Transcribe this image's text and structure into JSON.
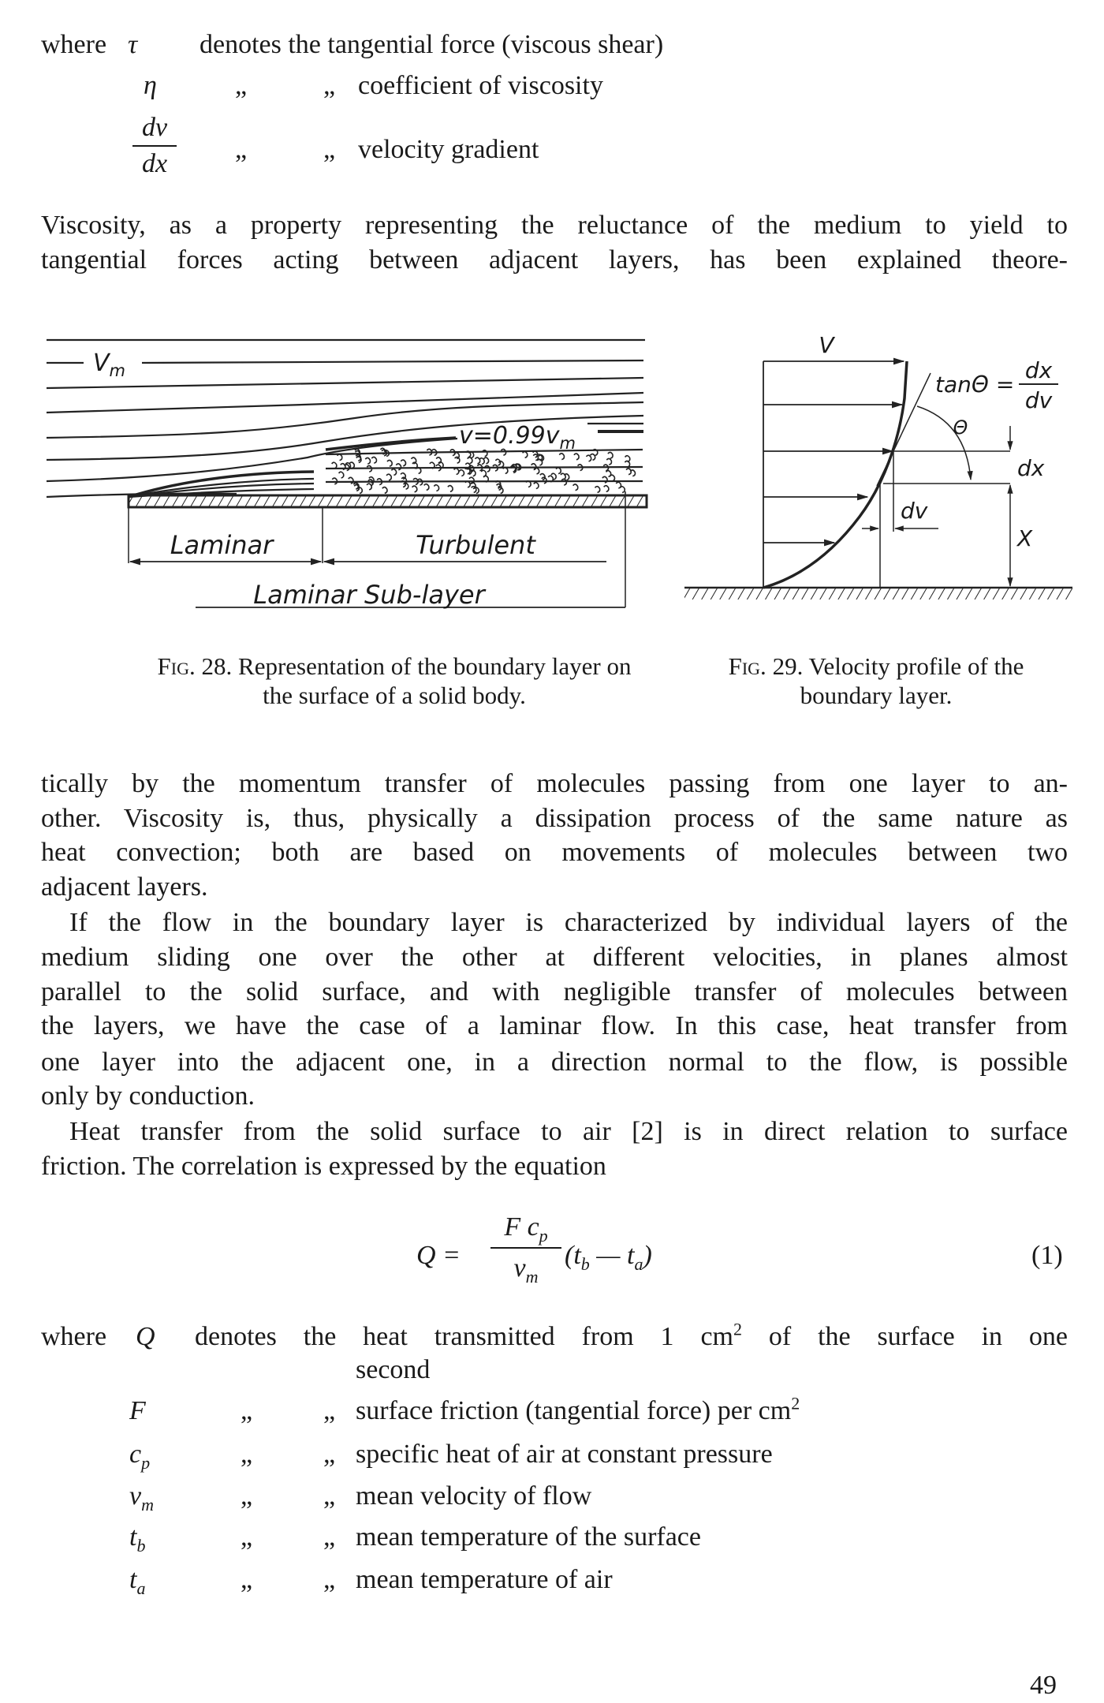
{
  "definitions_top": {
    "where": "where",
    "rows": [
      {
        "symbol": "τ",
        "text": "denotes the tangential force (viscous shear)"
      },
      {
        "symbol": "η",
        "ditto1": "„",
        "ditto2": "„",
        "text": "coefficient of viscosity"
      },
      {
        "symbol_num": "dv",
        "symbol_den": "dx",
        "ditto1": "„",
        "ditto2": "„",
        "text": "velocity gradient"
      }
    ]
  },
  "para1_lines": [
    "Viscosity, as a property representing the reluctance of the medium to yield to",
    "tangential forces acting between adjacent layers, has been explained theore-"
  ],
  "fig28": {
    "label_vm": "V",
    "label_vm_sub": "m",
    "label_v099": "v=0.99v",
    "label_v099_sub": "m",
    "label_laminar": "Laminar",
    "label_turbulent": "Turbulent",
    "label_sublayer": "Laminar Sub-layer",
    "caption_fig": "Fig.",
    "caption_line1": " 28. Representation of the boundary layer on",
    "caption_line2": "the surface of a solid body."
  },
  "fig29": {
    "label_v": "V",
    "label_tan": "tanΘ =",
    "label_frac_num": "dx",
    "label_frac_den": "dv",
    "label_theta": "Θ",
    "label_dx": "dx",
    "label_dv": "dv",
    "label_x": "X",
    "caption_fig": "Fig.",
    "caption_line1": " 29. Velocity profile of the",
    "caption_line2": "boundary layer."
  },
  "para2_lines": [
    "tically by the momentum transfer of molecules passing from one layer to an-",
    "other. Viscosity is, thus, physically a dissipation process of the same nature as",
    "heat convection; both are based on movements of molecules between two",
    "adjacent layers."
  ],
  "para3_lines": [
    "If the flow in the boundary layer is characterized by individual layers of the",
    "medium sliding one over the other at different velocities, in planes almost",
    "parallel to the solid surface, and with negligible transfer of molecules between",
    "the layers, we have the case of a laminar flow. In this case, heat transfer from",
    "one layer into the adjacent one, in a direction normal to the flow, is possible",
    "only by conduction."
  ],
  "para4_lines": [
    "Heat transfer from the solid surface to air [2] is in direct relation to surface",
    "friction. The correlation is expressed by the equation"
  ],
  "equation": {
    "lhs": "Q =",
    "num": "F c",
    "num_sub": "p",
    "den": "v",
    "den_sub": "m",
    "rhs_open": "(t",
    "rhs_sub1": "b",
    "rhs_mid": " — t",
    "rhs_sub2": "a",
    "rhs_close": ")",
    "number": "(1)"
  },
  "definitions_bottom": {
    "where": "where",
    "first_symbol": "Q",
    "first_text_a": "denotes the heat transmitted from 1 cm",
    "first_text_sup": "2",
    "first_text_b": " of the surface in one",
    "first_text_cont": "second",
    "ditto": "„",
    "rows": [
      {
        "symbol": "F",
        "symbol_sub": "",
        "text": "surface friction (tangential force) per cm",
        "sup": "2"
      },
      {
        "symbol": "c",
        "symbol_sub": "p",
        "text": "specific heat of air at constant pressure",
        "sup": ""
      },
      {
        "symbol": "v",
        "symbol_sub": "m",
        "text": "mean velocity of flow",
        "sup": ""
      },
      {
        "symbol": "t",
        "symbol_sub": "b",
        "text": "mean temperature of the surface",
        "sup": ""
      },
      {
        "symbol": "t",
        "symbol_sub": "a",
        "text": "mean temperature of air",
        "sup": ""
      }
    ]
  },
  "page_number": "49"
}
